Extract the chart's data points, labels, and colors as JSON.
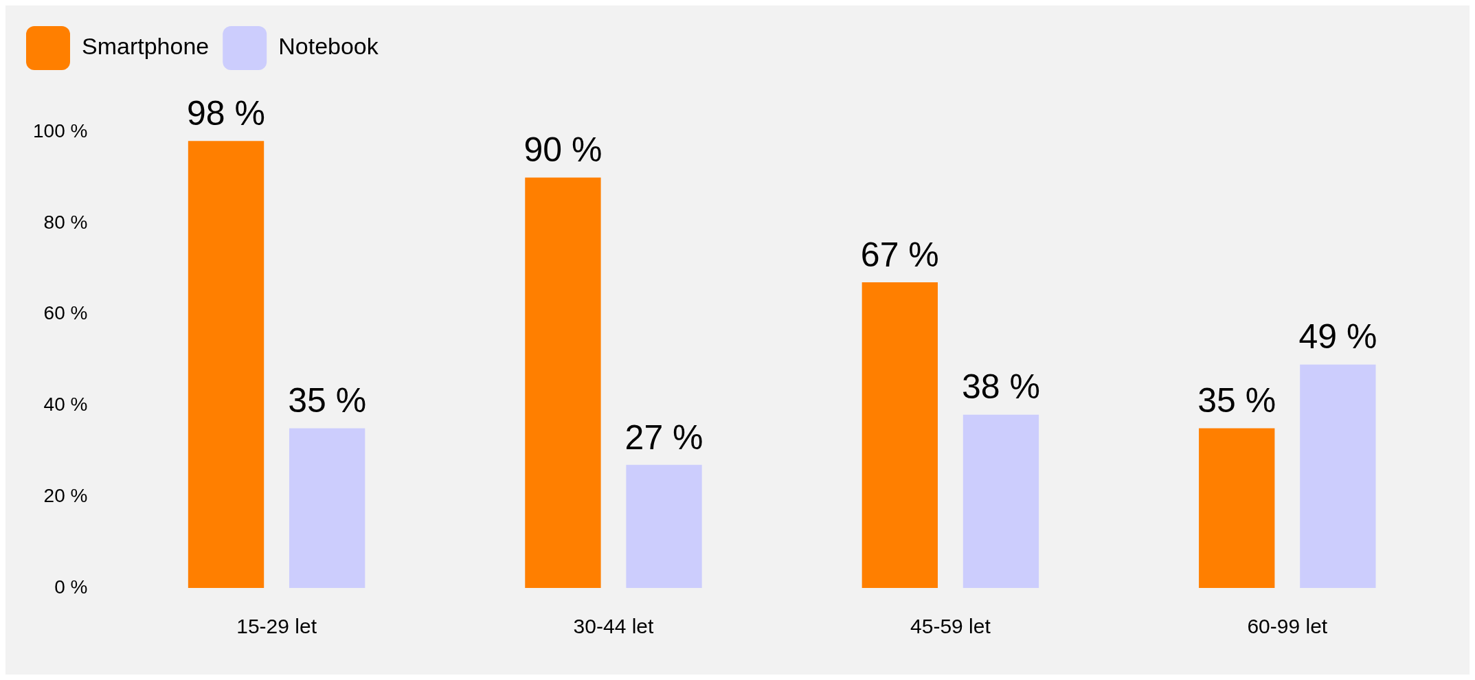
{
  "chart_data": {
    "type": "bar",
    "categories": [
      "15-29 let",
      "30-44 let",
      "45-59 let",
      "60-99 let"
    ],
    "series": [
      {
        "name": "Smartphone",
        "color": "#ff7f00",
        "values": [
          98,
          90,
          67,
          35
        ],
        "value_labels": [
          "98 %",
          "90 %",
          "67 %",
          "35 %"
        ]
      },
      {
        "name": "Notebook",
        "color": "#cccdfd",
        "values": [
          35,
          27,
          38,
          49
        ],
        "value_labels": [
          "35 %",
          "27 %",
          "38 %",
          "49 %"
        ]
      }
    ],
    "ylim": [
      0,
      100
    ],
    "yticks": [
      {
        "value": 0,
        "label": "0 %"
      },
      {
        "value": 20,
        "label": "20 %"
      },
      {
        "value": 40,
        "label": "40 %"
      },
      {
        "value": 60,
        "label": "60 %"
      },
      {
        "value": 80,
        "label": "80 %"
      },
      {
        "value": 100,
        "label": "100 %"
      }
    ],
    "grid": false,
    "legend": "top left"
  }
}
